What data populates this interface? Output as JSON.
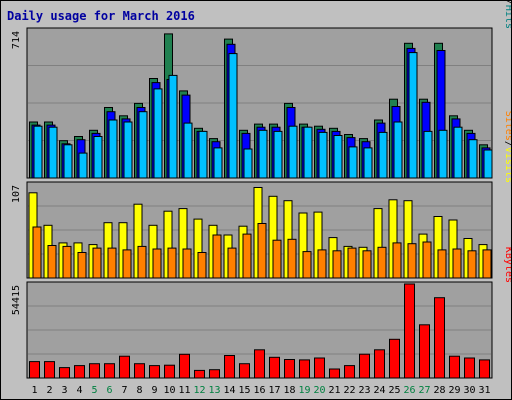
{
  "chart_data": {
    "type": "bar",
    "title": "Daily usage for March 2016",
    "categories": [
      "1",
      "2",
      "3",
      "4",
      "5",
      "6",
      "7",
      "8",
      "9",
      "10",
      "11",
      "12",
      "13",
      "14",
      "15",
      "16",
      "17",
      "18",
      "19",
      "20",
      "21",
      "22",
      "23",
      "24",
      "25",
      "26",
      "27",
      "28",
      "29",
      "30",
      "31"
    ],
    "weekend_days": [
      "5",
      "6",
      "12",
      "13",
      "19",
      "20",
      "26",
      "27"
    ],
    "panels": [
      {
        "name": "hits-files-pages",
        "max_label": "714",
        "ylim": [
          0,
          714
        ],
        "legend": [
          {
            "text": "Pages",
            "color": "#00c0ff"
          },
          {
            "text": "/",
            "color": "#000000"
          },
          {
            "text": "Files",
            "color": "#0000ff"
          },
          {
            "text": "/",
            "color": "#000000"
          },
          {
            "text": "Hits",
            "color": "#008080"
          }
        ],
        "series": [
          {
            "name": "Hits",
            "color": "#208050",
            "values": [
              270,
              270,
              180,
              200,
              230,
              340,
              300,
              360,
              480,
              695,
              420,
              240,
              190,
              670,
              230,
              260,
              260,
              360,
              260,
              250,
              240,
              210,
              190,
              280,
              380,
              650,
              380,
              650,
              300,
              230,
              160
            ]
          },
          {
            "name": "Files",
            "color": "#0000ff",
            "values": [
              255,
              255,
              165,
              185,
              215,
              320,
              285,
              340,
              460,
              475,
              400,
              225,
              175,
              645,
              215,
              245,
              245,
              340,
              245,
              235,
              225,
              195,
              175,
              265,
              345,
              625,
              365,
              615,
              285,
              215,
              145
            ]
          },
          {
            "name": "Pages",
            "color": "#00c0ff",
            "values": [
              250,
              245,
              160,
              120,
              200,
              280,
              270,
              320,
              430,
              495,
              265,
              225,
              145,
              600,
              140,
              230,
              225,
              250,
              245,
              220,
              205,
              150,
              145,
              220,
              270,
              605,
              225,
              230,
              245,
              185,
              135
            ]
          }
        ]
      },
      {
        "name": "visits-sites",
        "max_label": "107",
        "ylim": [
          0,
          107
        ],
        "legend": [
          {
            "text": "Sites",
            "color": "#ff8000"
          },
          {
            "text": "/",
            "color": "#000000"
          },
          {
            "text": "Visits",
            "color": "#ffff00"
          }
        ],
        "series": [
          {
            "name": "Visits",
            "color": "#ffff00",
            "values": [
              97,
              60,
              40,
              40,
              38,
              63,
              63,
              84,
              60,
              76,
              79,
              67,
              60,
              49,
              59,
              103,
              93,
              88,
              74,
              75,
              46,
              36,
              35,
              79,
              89,
              88,
              50,
              70,
              66,
              45,
              38
            ]
          },
          {
            "name": "Sites",
            "color": "#ff8000",
            "values": [
              58,
              37,
              36,
              29,
              34,
              34,
              32,
              36,
              33,
              34,
              33,
              29,
              49,
              34,
              50,
              62,
              43,
              44,
              30,
              32,
              31,
              34,
              31,
              35,
              40,
              39,
              41,
              32,
              33,
              31,
              32
            ]
          }
        ]
      },
      {
        "name": "kbytes",
        "max_label": "54415",
        "ylim": [
          0,
          54415
        ],
        "legend": [
          {
            "text": "KBytes",
            "color": "#ff0000"
          }
        ],
        "series": [
          {
            "name": "KBytes",
            "color": "#ff0000",
            "values": [
              9500,
              9500,
              6000,
              7200,
              8300,
              8300,
              12600,
              8300,
              7200,
              7400,
              13700,
              4400,
              4800,
              13000,
              8300,
              16300,
              12000,
              10700,
              10500,
              11600,
              5200,
              7200,
              13800,
              16300,
              22400,
              54400,
              30800,
              46500,
              12600,
              11600,
              10500
            ]
          }
        ]
      }
    ]
  }
}
